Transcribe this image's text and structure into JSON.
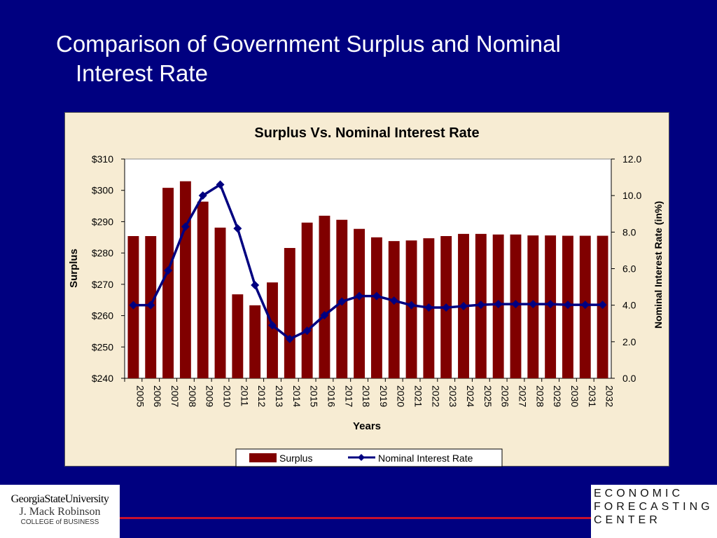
{
  "slide": {
    "title_line1": "Comparison of Government Surplus and Nominal",
    "title_line2": "Interest Rate"
  },
  "footer": {
    "left_logo_line1": "GeorgiaStateUniversity",
    "left_logo_line2": "J. Mack Robinson",
    "left_logo_line3": "COLLEGE of BUSINESS",
    "right_logo_line1": "ECONOMIC",
    "right_logo_line2": "FORECASTING",
    "right_logo_line3": "CENTER"
  },
  "chart_data": {
    "type": "bar+line",
    "title": "Surplus Vs. Nominal Interest Rate",
    "xlabel": "Years",
    "ylabel": "Surplus",
    "y2label": "Nominal Interest Rate (in%)",
    "ylim": [
      240,
      310
    ],
    "y2lim": [
      0,
      12
    ],
    "yticks": [
      "$240",
      "$250",
      "$260",
      "$270",
      "$280",
      "$290",
      "$300",
      "$310"
    ],
    "y2ticks": [
      "0.0",
      "2.0",
      "4.0",
      "6.0",
      "8.0",
      "10.0",
      "12.0"
    ],
    "categories": [
      "2005",
      "2006",
      "2007",
      "2008",
      "2009",
      "2010",
      "2011",
      "2012",
      "2013",
      "2014",
      "2015",
      "2016",
      "2017",
      "2018",
      "2019",
      "2020",
      "2021",
      "2022",
      "2023",
      "2024",
      "2025",
      "2026",
      "2027",
      "2028",
      "2029",
      "2030",
      "2031",
      "2032"
    ],
    "series": [
      {
        "name": "Surplus",
        "type": "bar",
        "axis": "left",
        "color": "#800000",
        "values": [
          285.4,
          285.4,
          300.8,
          302.9,
          296.4,
          288.1,
          266.8,
          263.3,
          270.6,
          281.6,
          289.7,
          291.9,
          290.6,
          287.7,
          285.0,
          283.8,
          284.0,
          284.7,
          285.4,
          286.1,
          286.1,
          285.9,
          285.9,
          285.6,
          285.6,
          285.5,
          285.5,
          285.5
        ]
      },
      {
        "name": "Nominal Interest Rate",
        "type": "line",
        "axis": "right",
        "color": "#000080",
        "values": [
          4.0,
          4.0,
          5.9,
          8.3,
          10.0,
          10.6,
          8.2,
          5.1,
          2.9,
          2.15,
          2.6,
          3.45,
          4.2,
          4.5,
          4.5,
          4.25,
          4.0,
          3.87,
          3.87,
          3.95,
          4.02,
          4.06,
          4.06,
          4.06,
          4.06,
          4.02,
          4.02,
          4.02
        ]
      }
    ],
    "legend_position": "bottom"
  }
}
